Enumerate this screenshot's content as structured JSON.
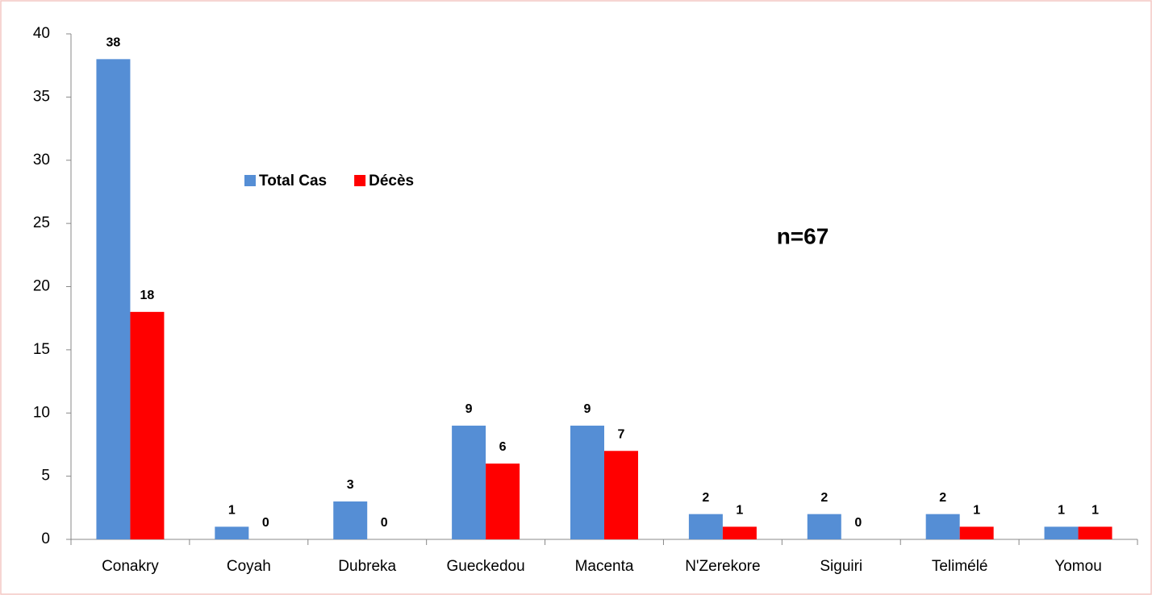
{
  "chart_data": {
    "type": "bar",
    "annotation": "n=67",
    "categories": [
      "Conakry",
      "Coyah",
      "Dubreka",
      "Gueckedou",
      "Macenta",
      "N'Zerekore",
      "Siguiri",
      "Telimélé",
      "Yomou"
    ],
    "series": [
      {
        "name": "Total Cas",
        "color": "#558ed5",
        "values": [
          38,
          1,
          3,
          9,
          9,
          2,
          2,
          2,
          1
        ]
      },
      {
        "name": "Décès",
        "color": "#ff0000",
        "values": [
          18,
          0,
          0,
          6,
          7,
          1,
          0,
          1,
          1
        ]
      }
    ],
    "ylim": [
      0,
      40
    ],
    "yticks": [
      0,
      5,
      10,
      15,
      20,
      25,
      30,
      35,
      40
    ],
    "grid": false,
    "legend": "top-left"
  }
}
